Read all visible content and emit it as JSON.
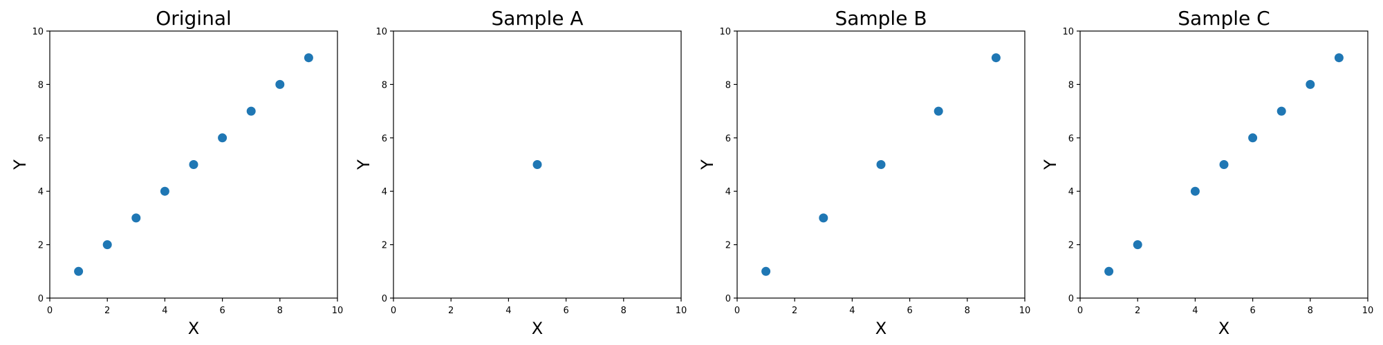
{
  "colors": {
    "marker": "#1f77b4"
  },
  "chart_data": [
    {
      "type": "scatter",
      "title": "Original",
      "xlabel": "X",
      "ylabel": "Y",
      "xlim": [
        0,
        10
      ],
      "ylim": [
        0,
        10
      ],
      "xticks": [
        0,
        2,
        4,
        6,
        8,
        10
      ],
      "yticks": [
        0,
        2,
        4,
        6,
        8,
        10
      ],
      "grid": false,
      "x": [
        1,
        2,
        3,
        4,
        5,
        6,
        7,
        8,
        9
      ],
      "y": [
        1,
        2,
        3,
        4,
        5,
        6,
        7,
        8,
        9
      ]
    },
    {
      "type": "scatter",
      "title": "Sample A",
      "xlabel": "X",
      "ylabel": "Y",
      "xlim": [
        0,
        10
      ],
      "ylim": [
        0,
        10
      ],
      "xticks": [
        0,
        2,
        4,
        6,
        8,
        10
      ],
      "yticks": [
        0,
        2,
        4,
        6,
        8,
        10
      ],
      "grid": false,
      "x": [
        5
      ],
      "y": [
        5
      ]
    },
    {
      "type": "scatter",
      "title": "Sample B",
      "xlabel": "X",
      "ylabel": "Y",
      "xlim": [
        0,
        10
      ],
      "ylim": [
        0,
        10
      ],
      "xticks": [
        0,
        2,
        4,
        6,
        8,
        10
      ],
      "yticks": [
        0,
        2,
        4,
        6,
        8,
        10
      ],
      "grid": false,
      "x": [
        1,
        3,
        5,
        7,
        9
      ],
      "y": [
        1,
        3,
        5,
        7,
        9
      ]
    },
    {
      "type": "scatter",
      "title": "Sample C",
      "xlabel": "X",
      "ylabel": "Y",
      "xlim": [
        0,
        10
      ],
      "ylim": [
        0,
        10
      ],
      "xticks": [
        0,
        2,
        4,
        6,
        8,
        10
      ],
      "yticks": [
        0,
        2,
        4,
        6,
        8,
        10
      ],
      "grid": false,
      "x": [
        1,
        2,
        4,
        5,
        6,
        7,
        8,
        9
      ],
      "y": [
        1,
        2,
        4,
        5,
        6,
        7,
        8,
        9
      ]
    }
  ]
}
